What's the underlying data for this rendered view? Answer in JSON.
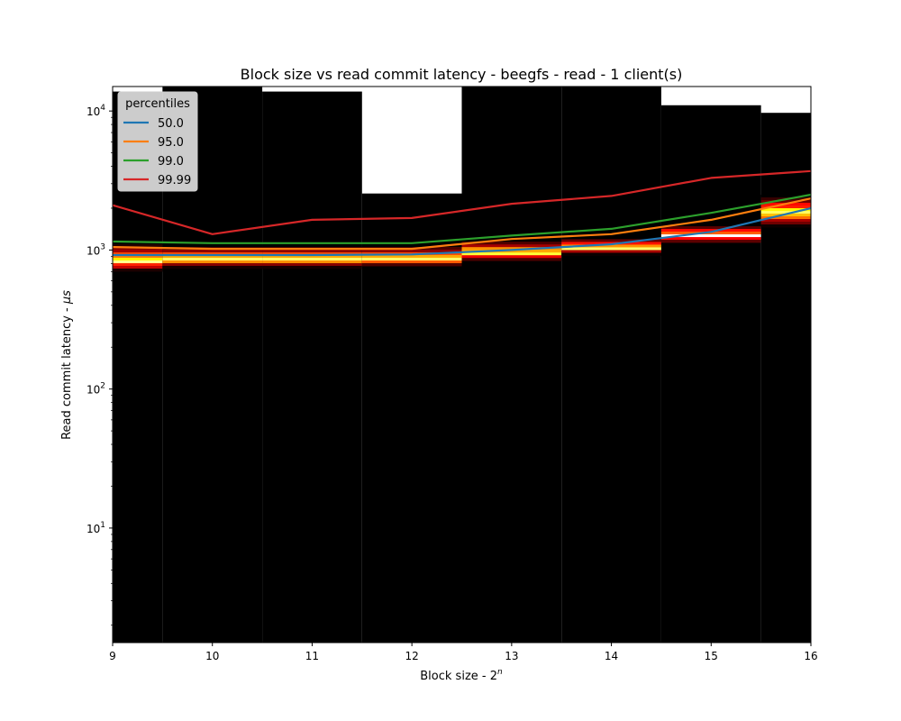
{
  "chart_data": {
    "type": "line",
    "title": "Block size vs read commit latency - beegfs - read - 1 client(s)",
    "xlabel": "Block size - 2",
    "xlabel_sup": "n",
    "ylabel": "Read commit latency - ",
    "ylabel_unit": "μs",
    "yscale": "log",
    "xlim": [
      9,
      16
    ],
    "ylim": [
      1.5,
      15000
    ],
    "x_ticks": [
      "9",
      "10",
      "11",
      "12",
      "13",
      "14",
      "15",
      "16"
    ],
    "y_ticks": [
      {
        "value": 10,
        "base": "10",
        "exp": "1"
      },
      {
        "value": 100,
        "base": "10",
        "exp": "2"
      },
      {
        "value": 1000,
        "base": "10",
        "exp": "3"
      },
      {
        "value": 10000,
        "base": "10",
        "exp": "4"
      }
    ],
    "grid": false,
    "legend": {
      "title": "percentiles",
      "position": "top-left"
    },
    "x": [
      9,
      10,
      11,
      12,
      13,
      14,
      15,
      16
    ],
    "series": [
      {
        "name": "50.0",
        "color": "#1f77b4",
        "values": [
          920,
          920,
          920,
          930,
          1000,
          1100,
          1350,
          2000
        ]
      },
      {
        "name": "95.0",
        "color": "#ff7f0e",
        "values": [
          1050,
          1020,
          1020,
          1020,
          1200,
          1300,
          1650,
          2350
        ]
      },
      {
        "name": "99.0",
        "color": "#2ca02c",
        "values": [
          1150,
          1120,
          1120,
          1120,
          1270,
          1420,
          1850,
          2500
        ]
      },
      {
        "name": "99.99",
        "color": "#d62728",
        "values": [
          2100,
          1300,
          1650,
          1700,
          2150,
          2450,
          3300,
          3700
        ]
      }
    ],
    "heatmap": {
      "colormap": "hot",
      "background": "#000000",
      "description_of_top_white_regions": "",
      "columns": [
        {
          "x": 9,
          "max_y": 13800,
          "bands": [
            {
              "y_low": 720,
              "y_high": 1150,
              "peak": 850
            }
          ]
        },
        {
          "x": 10,
          "max_y": 15000,
          "bands": [
            {
              "y_low": 760,
              "y_high": 1100,
              "peak": 880
            }
          ]
        },
        {
          "x": 11,
          "max_y": 13800,
          "bands": [
            {
              "y_low": 760,
              "y_high": 1100,
              "peak": 880
            }
          ]
        },
        {
          "x": 12,
          "max_y": 2550,
          "bands": [
            {
              "y_low": 780,
              "y_high": 1100,
              "peak": 880
            }
          ]
        },
        {
          "x": 13,
          "max_y": 15000,
          "bands": [
            {
              "y_low": 850,
              "y_high": 1200,
              "peak": 980
            }
          ]
        },
        {
          "x": 14,
          "max_y": 15000,
          "bands": [
            {
              "y_low": 950,
              "y_high": 1250,
              "peak": 1060
            }
          ]
        },
        {
          "x": 15,
          "max_y": 11000,
          "bands": [
            {
              "y_low": 1150,
              "y_high": 1550,
              "peak": 1300
            }
          ]
        },
        {
          "x": 16,
          "max_y": 9700,
          "bands": [
            {
              "y_low": 1500,
              "y_high": 2500,
              "peak": 1900
            }
          ]
        }
      ]
    }
  }
}
